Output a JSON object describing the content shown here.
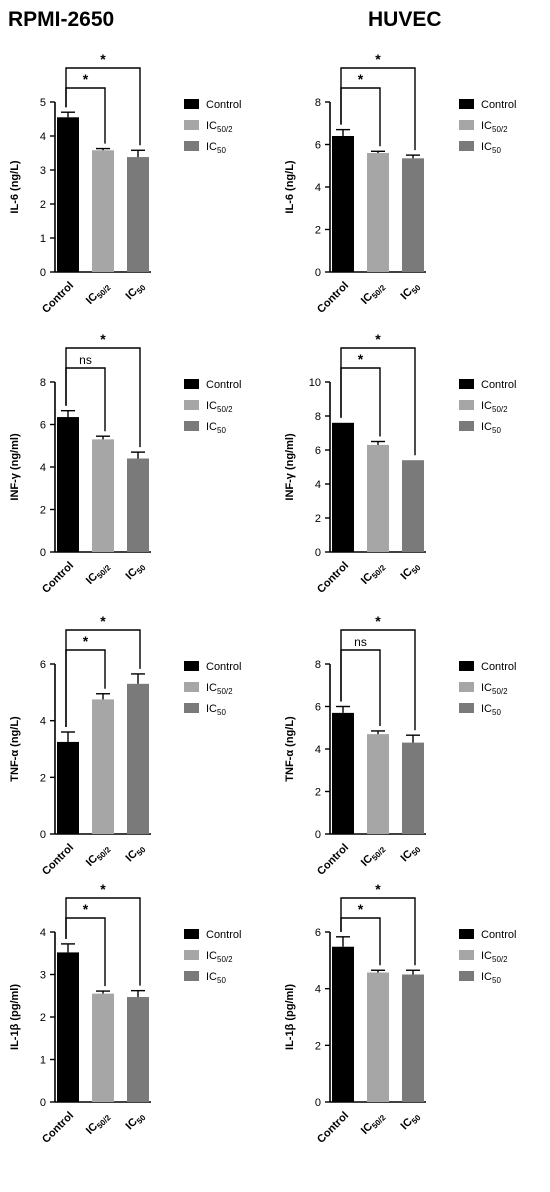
{
  "titles": {
    "left": "RPMI-2650",
    "right": "HUVEC"
  },
  "legend": {
    "items": [
      {
        "main": "Control",
        "sub": "",
        "color": "#000000"
      },
      {
        "main": "IC",
        "sub": "50/2",
        "color": "#a6a6a6"
      },
      {
        "main": "IC",
        "sub": "50",
        "color": "#7a7a7a"
      }
    ]
  },
  "categories": [
    {
      "main": "Control",
      "sub": ""
    },
    {
      "main": "IC",
      "sub": "50/2"
    },
    {
      "main": "IC",
      "sub": "50"
    }
  ],
  "chart_data": [
    {
      "id": "rpmi-il6",
      "type": "bar",
      "ylabel": "IL-6 (ng/L)",
      "ylim": [
        0,
        5
      ],
      "yticks": [
        0,
        1,
        2,
        3,
        4,
        5
      ],
      "values": [
        4.55,
        3.58,
        3.38
      ],
      "errors": [
        0.15,
        0.05,
        0.2
      ],
      "significance": [
        {
          "from": 0,
          "to": 1,
          "label": "*"
        },
        {
          "from": 0,
          "to": 2,
          "label": "*"
        }
      ]
    },
    {
      "id": "huvec-il6",
      "type": "bar",
      "ylabel": "IL-6 (ng/L)",
      "ylim": [
        0,
        8
      ],
      "yticks": [
        0,
        2,
        4,
        6,
        8
      ],
      "values": [
        6.4,
        5.6,
        5.35
      ],
      "errors": [
        0.3,
        0.08,
        0.15
      ],
      "significance": [
        {
          "from": 0,
          "to": 1,
          "label": "*"
        },
        {
          "from": 0,
          "to": 2,
          "label": "*"
        }
      ]
    },
    {
      "id": "rpmi-infg",
      "type": "bar",
      "ylabel": "INF-γ (ng/ml)",
      "ylim": [
        0,
        8
      ],
      "yticks": [
        0,
        2,
        4,
        6,
        8
      ],
      "values": [
        6.35,
        5.3,
        4.4
      ],
      "errors": [
        0.3,
        0.15,
        0.3
      ],
      "significance": [
        {
          "from": 0,
          "to": 1,
          "label": "ns"
        },
        {
          "from": 0,
          "to": 2,
          "label": "*"
        }
      ]
    },
    {
      "id": "huvec-infg",
      "type": "bar",
      "ylabel": "INF-γ (ng/ml)",
      "ylim": [
        0,
        10
      ],
      "yticks": [
        0,
        2,
        4,
        6,
        8,
        10
      ],
      "values": [
        7.6,
        6.3,
        5.4
      ],
      "errors": [
        0,
        0.2,
        0
      ],
      "significance": [
        {
          "from": 0,
          "to": 1,
          "label": "*"
        },
        {
          "from": 0,
          "to": 2,
          "label": "*"
        }
      ]
    },
    {
      "id": "rpmi-tnfa",
      "type": "bar",
      "ylabel": "TNF-α (ng/L)",
      "ylim": [
        0,
        6
      ],
      "yticks": [
        0,
        2,
        4,
        6
      ],
      "values": [
        3.25,
        4.75,
        5.3
      ],
      "errors": [
        0.35,
        0.2,
        0.35
      ],
      "significance": [
        {
          "from": 0,
          "to": 1,
          "label": "*"
        },
        {
          "from": 0,
          "to": 2,
          "label": "*"
        }
      ]
    },
    {
      "id": "huvec-tnfa",
      "type": "bar",
      "ylabel": "TNF-α (ng/L)",
      "ylim": [
        0,
        8
      ],
      "yticks": [
        0,
        2,
        4,
        6,
        8
      ],
      "values": [
        5.7,
        4.7,
        4.3
      ],
      "errors": [
        0.3,
        0.15,
        0.35
      ],
      "significance": [
        {
          "from": 0,
          "to": 1,
          "label": "ns"
        },
        {
          "from": 0,
          "to": 2,
          "label": "*"
        }
      ]
    },
    {
      "id": "rpmi-il1b",
      "type": "bar",
      "ylabel": "IL-1β (pg/ml)",
      "ylim": [
        0,
        4
      ],
      "yticks": [
        0,
        1,
        2,
        3,
        4
      ],
      "values": [
        3.52,
        2.55,
        2.47
      ],
      "errors": [
        0.2,
        0.06,
        0.15
      ],
      "significance": [
        {
          "from": 0,
          "to": 1,
          "label": "*"
        },
        {
          "from": 0,
          "to": 2,
          "label": "*"
        }
      ]
    },
    {
      "id": "huvec-il1b",
      "type": "bar",
      "ylabel": "IL-1β (pg/ml)",
      "ylim": [
        0,
        6
      ],
      "yticks": [
        0,
        2,
        4,
        6
      ],
      "values": [
        5.48,
        4.57,
        4.5
      ],
      "errors": [
        0.35,
        0.08,
        0.15
      ],
      "significance": [
        {
          "from": 0,
          "to": 1,
          "label": "*"
        },
        {
          "from": 0,
          "to": 2,
          "label": "*"
        }
      ]
    }
  ]
}
